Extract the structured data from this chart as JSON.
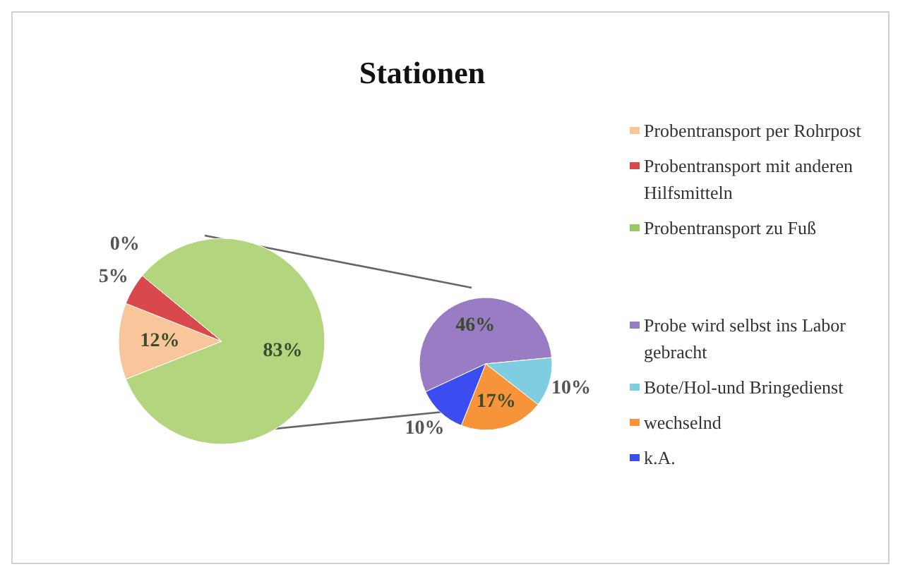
{
  "chart_data": [
    {
      "type": "pie",
      "title": "Stationen",
      "categories": [
        "Probentransport per Rohrpost",
        "Probentransport mit anderen Hilfsmitteln",
        "Probentransport zu Fuß",
        null
      ],
      "values": [
        12,
        5,
        0,
        83
      ],
      "value_labels": [
        "12%",
        "5%",
        "0%",
        "83%"
      ],
      "colors": [
        "#f9c59a",
        "#d9484c",
        "#9cc862",
        "#b2d57d"
      ],
      "legend": "right"
    },
    {
      "type": "pie",
      "categories": [
        "Probe wird selbst ins Labor gebracht",
        "Bote/Hol-und Bringedienst",
        "wechselnd",
        "k.A."
      ],
      "values": [
        46,
        10,
        17,
        10
      ],
      "value_labels": [
        "46%",
        "10%",
        "17%",
        "10%"
      ],
      "colors": [
        "#9a7cc4",
        "#7fcde0",
        "#f7943a",
        "#3b4cf0"
      ],
      "legend": "right"
    }
  ]
}
